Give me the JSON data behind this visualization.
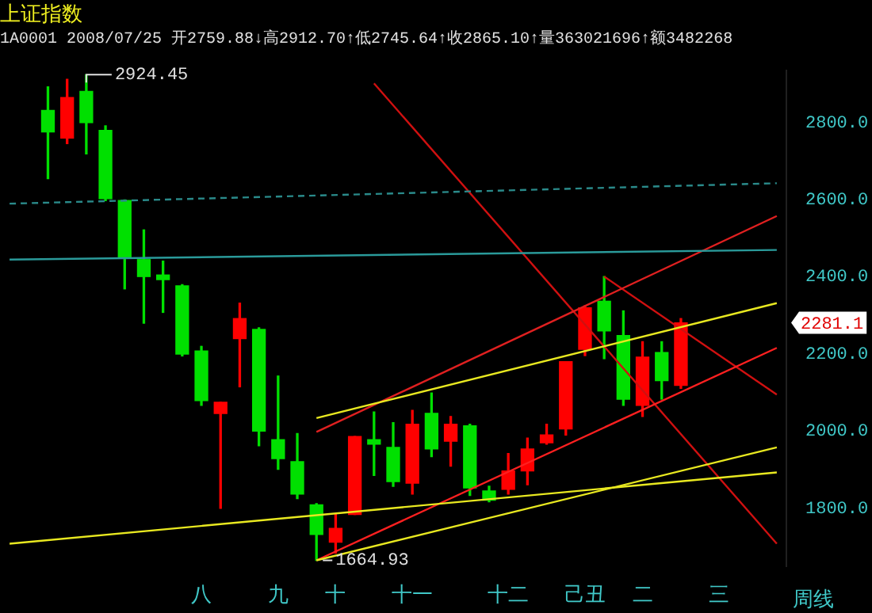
{
  "chart_data": {
    "type": "candlestick",
    "title": "上证指数",
    "subtitle": "1A0001 2008/07/25 开2759.88↓高2912.70↑低2745.64↑收2865.10↑量363021696↑额3482268",
    "categories": [
      null,
      null,
      null,
      null,
      null,
      null,
      null,
      null,
      null,
      null,
      "八",
      null,
      null,
      null,
      "九",
      null,
      null,
      "十",
      null,
      null,
      null,
      "十一",
      null,
      null,
      null,
      null,
      "十二",
      null,
      null,
      null,
      "己丑",
      null,
      null,
      "二",
      null,
      null,
      null,
      "三",
      null,
      null,
      null
    ],
    "ohlc": [
      null,
      null,
      [
        2832,
        2893,
        2655,
        2776
      ],
      [
        2759.88,
        2912.7,
        2745.64,
        2865.1
      ],
      [
        2881,
        2924.45,
        2719,
        2800
      ],
      [
        2780,
        2792,
        2598,
        2603
      ],
      [
        2598,
        2600,
        2369,
        2449
      ],
      [
        2445,
        2522,
        2280,
        2401
      ],
      [
        2405,
        2441,
        2308,
        2393
      ],
      [
        2377,
        2380,
        2195,
        2200
      ],
      [
        2208,
        2220,
        2067,
        2079
      ],
      [
        2046,
        2075,
        1800,
        2075
      ],
      [
        2240,
        2332,
        2115,
        2292
      ],
      [
        2264,
        2268,
        1962,
        2000
      ],
      [
        1978,
        2143,
        1901,
        1929
      ],
      [
        1921,
        1994,
        1825,
        1837
      ],
      [
        1809,
        1812,
        1664.93,
        1732
      ],
      [
        1712,
        1784,
        1684,
        1748
      ],
      [
        1784,
        1986,
        1784,
        1986
      ],
      [
        1978,
        2050,
        1885,
        1966
      ],
      [
        1958,
        2022,
        1857,
        1869
      ],
      [
        1865,
        2054,
        1837,
        2018
      ],
      [
        2046,
        2099,
        1934,
        1954
      ],
      [
        1974,
        2038,
        1909,
        2018
      ],
      [
        2014,
        2018,
        1833,
        1853
      ],
      [
        1845,
        1857,
        1817,
        1821
      ],
      [
        1849,
        1942,
        1837,
        1897
      ],
      [
        1897,
        1982,
        1861,
        1954
      ],
      [
        1970,
        2018,
        1966,
        1990
      ],
      [
        2006,
        2180,
        1990,
        2180
      ],
      [
        2212,
        2325,
        2196,
        2320
      ],
      [
        2337,
        2401,
        2188,
        2260
      ],
      [
        2248,
        2312,
        2067,
        2083
      ],
      [
        2067,
        2232,
        2038,
        2192
      ],
      [
        2204,
        2232,
        2083,
        2131
      ],
      [
        2119,
        2292,
        2111,
        2281.1
      ],
      null,
      null,
      null,
      null,
      null
    ],
    "colors": [
      null,
      null,
      "#00e000",
      "#ff0000",
      "#00e000",
      "#00e000",
      "#00e000",
      "#00e000",
      "#00e000",
      "#00e000",
      "#00e000",
      "#ff0000",
      "#ff0000",
      "#00e000",
      "#00e000",
      "#00e000",
      "#00e000",
      "#ff0000",
      "#ff0000",
      "#00e000",
      "#00e000",
      "#ff0000",
      "#00e000",
      "#ff0000",
      "#00e000",
      "#00e000",
      "#ff0000",
      "#ff0000",
      "#ff0000",
      "#ff0000",
      "#ff0000",
      "#00e000",
      "#00e000",
      "#ff0000",
      "#00e000",
      "#ff0000",
      null,
      null,
      null,
      null,
      null
    ],
    "series": [
      {
        "type": "line",
        "color": "#2a8a8a",
        "line_style": "dashed",
        "values": [
          2590,
          null,
          null,
          null,
          null,
          null,
          null,
          null,
          null,
          null,
          null,
          null,
          null,
          null,
          null,
          null,
          null,
          null,
          null,
          null,
          null,
          null,
          null,
          null,
          null,
          null,
          null,
          null,
          null,
          null,
          null,
          null,
          null,
          null,
          null,
          null,
          null,
          null,
          null,
          null,
          2643
        ]
      },
      {
        "type": "line",
        "color": "#2a9a9a",
        "line_style": "solid",
        "values": [
          2445,
          null,
          null,
          null,
          null,
          null,
          null,
          null,
          null,
          null,
          null,
          null,
          null,
          null,
          null,
          null,
          null,
          null,
          null,
          null,
          null,
          null,
          null,
          null,
          null,
          null,
          null,
          null,
          null,
          null,
          null,
          null,
          null,
          null,
          null,
          null,
          null,
          null,
          null,
          null,
          2470
        ]
      },
      {
        "type": "line",
        "color": "#e8e820",
        "line_style": "solid",
        "values": [
          1708,
          null,
          null,
          null,
          null,
          null,
          null,
          null,
          null,
          null,
          null,
          null,
          null,
          null,
          null,
          null,
          null,
          null,
          null,
          null,
          null,
          null,
          null,
          null,
          null,
          null,
          null,
          null,
          null,
          null,
          null,
          null,
          null,
          null,
          null,
          null,
          null,
          null,
          null,
          null,
          1893
        ]
      },
      {
        "type": "line",
        "color": "#e8e820",
        "line_style": "solid",
        "values": [
          null,
          null,
          null,
          null,
          null,
          null,
          null,
          null,
          null,
          null,
          null,
          null,
          null,
          null,
          null,
          null,
          1665,
          null,
          null,
          null,
          null,
          null,
          null,
          null,
          null,
          null,
          null,
          null,
          null,
          null,
          null,
          null,
          null,
          null,
          null,
          null,
          null,
          null,
          null,
          null,
          1958
        ]
      },
      {
        "type": "line",
        "color": "#ff2020",
        "line_style": "solid",
        "values": [
          null,
          null,
          null,
          null,
          null,
          null,
          null,
          null,
          null,
          null,
          null,
          null,
          null,
          null,
          null,
          null,
          1665,
          null,
          null,
          null,
          null,
          null,
          null,
          null,
          null,
          null,
          null,
          null,
          null,
          null,
          null,
          null,
          null,
          null,
          null,
          null,
          null,
          null,
          null,
          null,
          2216
        ]
      },
      {
        "type": "line",
        "color": "#e8e820",
        "line_style": "solid",
        "values": [
          null,
          null,
          null,
          null,
          null,
          null,
          null,
          null,
          null,
          null,
          null,
          null,
          null,
          null,
          null,
          null,
          2034,
          null,
          null,
          null,
          null,
          null,
          null,
          null,
          null,
          null,
          null,
          null,
          null,
          null,
          null,
          null,
          null,
          null,
          null,
          null,
          null,
          null,
          null,
          null,
          2332
        ]
      },
      {
        "type": "line",
        "color": "#e02020",
        "line_style": "solid",
        "values": [
          null,
          null,
          null,
          null,
          null,
          null,
          null,
          null,
          null,
          null,
          null,
          null,
          null,
          null,
          null,
          null,
          1998,
          null,
          null,
          null,
          null,
          null,
          null,
          null,
          null,
          null,
          null,
          null,
          null,
          null,
          null,
          null,
          null,
          null,
          null,
          null,
          null,
          null,
          null,
          null,
          2558
        ]
      },
      {
        "type": "line",
        "color": "#d01010",
        "line_style": "solid",
        "values": [
          null,
          null,
          null,
          null,
          null,
          null,
          null,
          null,
          null,
          null,
          null,
          null,
          null,
          null,
          null,
          null,
          null,
          null,
          null,
          2902,
          null,
          null,
          null,
          null,
          null,
          null,
          null,
          null,
          null,
          null,
          null,
          null,
          null,
          null,
          null,
          null,
          null,
          null,
          null,
          null,
          1708
        ]
      },
      {
        "type": "line",
        "color": "#d01010",
        "line_style": "solid",
        "values": [
          null,
          null,
          null,
          null,
          null,
          null,
          null,
          null,
          null,
          null,
          null,
          null,
          null,
          null,
          null,
          null,
          null,
          null,
          null,
          null,
          null,
          null,
          null,
          null,
          null,
          null,
          null,
          null,
          null,
          null,
          null,
          2401,
          null,
          null,
          null,
          null,
          null,
          null,
          null,
          null,
          2095
        ]
      }
    ],
    "ylim": [
      1650,
      2935
    ],
    "yticks": [
      {
        "value": 1800,
        "label": "1800.0"
      },
      {
        "value": 2000,
        "label": "2000.0"
      },
      {
        "value": 2200,
        "label": "2200.0"
      },
      {
        "value": 2400,
        "label": "2400.0"
      },
      {
        "value": 2600,
        "label": "2600.0"
      },
      {
        "value": 2800,
        "label": "2800.0"
      }
    ],
    "grid": false,
    "legend": false,
    "marker": "none",
    "annotations": [
      "周线",
      "2924.45",
      "1664.93",
      "2281.1"
    ]
  }
}
